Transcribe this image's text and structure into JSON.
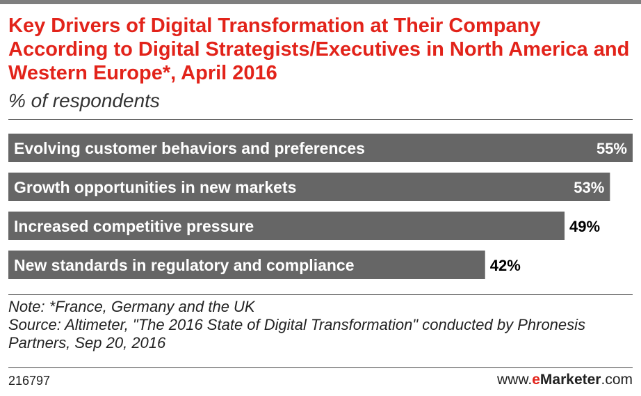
{
  "title": "Key Drivers of Digital Transformation at Their Company According to Digital Strategists/Executives in North America and Western Europe*, April 2016",
  "subtitle": "% of respondents",
  "chart_data": {
    "type": "bar",
    "orientation": "horizontal",
    "categories": [
      "Evolving customer behaviors and preferences",
      "Growth opportunities in new markets",
      "Increased competitive pressure",
      "New standards in regulatory and compliance"
    ],
    "values": [
      55,
      53,
      49,
      42
    ],
    "value_labels": [
      "55%",
      "53%",
      "49%",
      "42%"
    ],
    "xlim": [
      0,
      55
    ],
    "grid": false,
    "bar_color": "#666666",
    "label_color": "#ffffff"
  },
  "notes": {
    "note": "Note: *France, Germany and the UK",
    "source": "Source: Altimeter, \"The 2016 State of Digital Transformation\" conducted by Phronesis Partners, Sep 20, 2016"
  },
  "footer": {
    "id": "216797",
    "brand_prefix": "www.",
    "brand_e": "e",
    "brand_name": "Marketer",
    "brand_suffix": ".com"
  },
  "colors": {
    "title": "#e2231a",
    "bar": "#666666",
    "rule": "#444444"
  }
}
